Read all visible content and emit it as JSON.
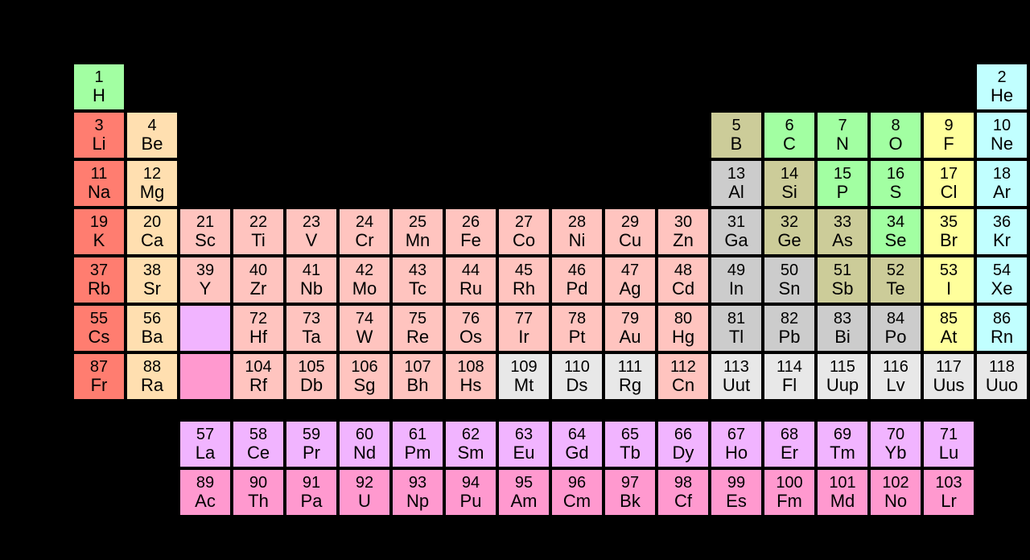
{
  "type": "periodic-table",
  "background_color": "#000000",
  "cell_border_color": "#000000",
  "cell": {
    "width": 66,
    "height": 60,
    "gap": 0,
    "fblock_row_gap": 24
  },
  "number_fontsize": 20,
  "symbol_fontsize": 22,
  "text_color": "#000000",
  "colors": {
    "alkali": "#ff7d70",
    "alkaline": "#ffdfb0",
    "transition": "#ffc4bf",
    "posttrans": "#cccccc",
    "metalloid": "#cccc99",
    "nonmetal": "#a2ffa2",
    "halogen": "#ffff9c",
    "noble": "#c1ffff",
    "lanth": "#f1b4ff",
    "act": "#ff99cf",
    "unknown": "#e8e8e8",
    "lanth_marker": "#f1b4ff",
    "act_marker": "#ff99cf"
  },
  "elements": [
    {
      "n": 1,
      "s": "H",
      "g": 1,
      "p": 1,
      "c": "nonmetal"
    },
    {
      "n": 2,
      "s": "He",
      "g": 18,
      "p": 1,
      "c": "noble"
    },
    {
      "n": 3,
      "s": "Li",
      "g": 1,
      "p": 2,
      "c": "alkali"
    },
    {
      "n": 4,
      "s": "Be",
      "g": 2,
      "p": 2,
      "c": "alkaline"
    },
    {
      "n": 5,
      "s": "B",
      "g": 13,
      "p": 2,
      "c": "metalloid"
    },
    {
      "n": 6,
      "s": "C",
      "g": 14,
      "p": 2,
      "c": "nonmetal"
    },
    {
      "n": 7,
      "s": "N",
      "g": 15,
      "p": 2,
      "c": "nonmetal"
    },
    {
      "n": 8,
      "s": "O",
      "g": 16,
      "p": 2,
      "c": "nonmetal"
    },
    {
      "n": 9,
      "s": "F",
      "g": 17,
      "p": 2,
      "c": "halogen"
    },
    {
      "n": 10,
      "s": "Ne",
      "g": 18,
      "p": 2,
      "c": "noble"
    },
    {
      "n": 11,
      "s": "Na",
      "g": 1,
      "p": 3,
      "c": "alkali"
    },
    {
      "n": 12,
      "s": "Mg",
      "g": 2,
      "p": 3,
      "c": "alkaline"
    },
    {
      "n": 13,
      "s": "Al",
      "g": 13,
      "p": 3,
      "c": "posttrans"
    },
    {
      "n": 14,
      "s": "Si",
      "g": 14,
      "p": 3,
      "c": "metalloid"
    },
    {
      "n": 15,
      "s": "P",
      "g": 15,
      "p": 3,
      "c": "nonmetal"
    },
    {
      "n": 16,
      "s": "S",
      "g": 16,
      "p": 3,
      "c": "nonmetal"
    },
    {
      "n": 17,
      "s": "Cl",
      "g": 17,
      "p": 3,
      "c": "halogen"
    },
    {
      "n": 18,
      "s": "Ar",
      "g": 18,
      "p": 3,
      "c": "noble"
    },
    {
      "n": 19,
      "s": "K",
      "g": 1,
      "p": 4,
      "c": "alkali"
    },
    {
      "n": 20,
      "s": "Ca",
      "g": 2,
      "p": 4,
      "c": "alkaline"
    },
    {
      "n": 21,
      "s": "Sc",
      "g": 3,
      "p": 4,
      "c": "transition"
    },
    {
      "n": 22,
      "s": "Ti",
      "g": 4,
      "p": 4,
      "c": "transition"
    },
    {
      "n": 23,
      "s": "V",
      "g": 5,
      "p": 4,
      "c": "transition"
    },
    {
      "n": 24,
      "s": "Cr",
      "g": 6,
      "p": 4,
      "c": "transition"
    },
    {
      "n": 25,
      "s": "Mn",
      "g": 7,
      "p": 4,
      "c": "transition"
    },
    {
      "n": 26,
      "s": "Fe",
      "g": 8,
      "p": 4,
      "c": "transition"
    },
    {
      "n": 27,
      "s": "Co",
      "g": 9,
      "p": 4,
      "c": "transition"
    },
    {
      "n": 28,
      "s": "Ni",
      "g": 10,
      "p": 4,
      "c": "transition"
    },
    {
      "n": 29,
      "s": "Cu",
      "g": 11,
      "p": 4,
      "c": "transition"
    },
    {
      "n": 30,
      "s": "Zn",
      "g": 12,
      "p": 4,
      "c": "transition"
    },
    {
      "n": 31,
      "s": "Ga",
      "g": 13,
      "p": 4,
      "c": "posttrans"
    },
    {
      "n": 32,
      "s": "Ge",
      "g": 14,
      "p": 4,
      "c": "metalloid"
    },
    {
      "n": 33,
      "s": "As",
      "g": 15,
      "p": 4,
      "c": "metalloid"
    },
    {
      "n": 34,
      "s": "Se",
      "g": 16,
      "p": 4,
      "c": "nonmetal"
    },
    {
      "n": 35,
      "s": "Br",
      "g": 17,
      "p": 4,
      "c": "halogen"
    },
    {
      "n": 36,
      "s": "Kr",
      "g": 18,
      "p": 4,
      "c": "noble"
    },
    {
      "n": 37,
      "s": "Rb",
      "g": 1,
      "p": 5,
      "c": "alkali"
    },
    {
      "n": 38,
      "s": "Sr",
      "g": 2,
      "p": 5,
      "c": "alkaline"
    },
    {
      "n": 39,
      "s": "Y",
      "g": 3,
      "p": 5,
      "c": "transition"
    },
    {
      "n": 40,
      "s": "Zr",
      "g": 4,
      "p": 5,
      "c": "transition"
    },
    {
      "n": 41,
      "s": "Nb",
      "g": 5,
      "p": 5,
      "c": "transition"
    },
    {
      "n": 42,
      "s": "Mo",
      "g": 6,
      "p": 5,
      "c": "transition"
    },
    {
      "n": 43,
      "s": "Tc",
      "g": 7,
      "p": 5,
      "c": "transition"
    },
    {
      "n": 44,
      "s": "Ru",
      "g": 8,
      "p": 5,
      "c": "transition"
    },
    {
      "n": 45,
      "s": "Rh",
      "g": 9,
      "p": 5,
      "c": "transition"
    },
    {
      "n": 46,
      "s": "Pd",
      "g": 10,
      "p": 5,
      "c": "transition"
    },
    {
      "n": 47,
      "s": "Ag",
      "g": 11,
      "p": 5,
      "c": "transition"
    },
    {
      "n": 48,
      "s": "Cd",
      "g": 12,
      "p": 5,
      "c": "transition"
    },
    {
      "n": 49,
      "s": "In",
      "g": 13,
      "p": 5,
      "c": "posttrans"
    },
    {
      "n": 50,
      "s": "Sn",
      "g": 14,
      "p": 5,
      "c": "posttrans"
    },
    {
      "n": 51,
      "s": "Sb",
      "g": 15,
      "p": 5,
      "c": "metalloid"
    },
    {
      "n": 52,
      "s": "Te",
      "g": 16,
      "p": 5,
      "c": "metalloid"
    },
    {
      "n": 53,
      "s": "I",
      "g": 17,
      "p": 5,
      "c": "halogen"
    },
    {
      "n": 54,
      "s": "Xe",
      "g": 18,
      "p": 5,
      "c": "noble"
    },
    {
      "n": 55,
      "s": "Cs",
      "g": 1,
      "p": 6,
      "c": "alkali"
    },
    {
      "n": 56,
      "s": "Ba",
      "g": 2,
      "p": 6,
      "c": "alkaline"
    },
    {
      "n": 0,
      "s": "",
      "g": 3,
      "p": 6,
      "c": "lanth_marker",
      "marker": true
    },
    {
      "n": 72,
      "s": "Hf",
      "g": 4,
      "p": 6,
      "c": "transition"
    },
    {
      "n": 73,
      "s": "Ta",
      "g": 5,
      "p": 6,
      "c": "transition"
    },
    {
      "n": 74,
      "s": "W",
      "g": 6,
      "p": 6,
      "c": "transition"
    },
    {
      "n": 75,
      "s": "Re",
      "g": 7,
      "p": 6,
      "c": "transition"
    },
    {
      "n": 76,
      "s": "Os",
      "g": 8,
      "p": 6,
      "c": "transition"
    },
    {
      "n": 77,
      "s": "Ir",
      "g": 9,
      "p": 6,
      "c": "transition"
    },
    {
      "n": 78,
      "s": "Pt",
      "g": 10,
      "p": 6,
      "c": "transition"
    },
    {
      "n": 79,
      "s": "Au",
      "g": 11,
      "p": 6,
      "c": "transition"
    },
    {
      "n": 80,
      "s": "Hg",
      "g": 12,
      "p": 6,
      "c": "transition"
    },
    {
      "n": 81,
      "s": "Tl",
      "g": 13,
      "p": 6,
      "c": "posttrans"
    },
    {
      "n": 82,
      "s": "Pb",
      "g": 14,
      "p": 6,
      "c": "posttrans"
    },
    {
      "n": 83,
      "s": "Bi",
      "g": 15,
      "p": 6,
      "c": "posttrans"
    },
    {
      "n": 84,
      "s": "Po",
      "g": 16,
      "p": 6,
      "c": "posttrans"
    },
    {
      "n": 85,
      "s": "At",
      "g": 17,
      "p": 6,
      "c": "halogen"
    },
    {
      "n": 86,
      "s": "Rn",
      "g": 18,
      "p": 6,
      "c": "noble"
    },
    {
      "n": 87,
      "s": "Fr",
      "g": 1,
      "p": 7,
      "c": "alkali"
    },
    {
      "n": 88,
      "s": "Ra",
      "g": 2,
      "p": 7,
      "c": "alkaline"
    },
    {
      "n": 0,
      "s": "",
      "g": 3,
      "p": 7,
      "c": "act_marker",
      "marker": true
    },
    {
      "n": 104,
      "s": "Rf",
      "g": 4,
      "p": 7,
      "c": "transition"
    },
    {
      "n": 105,
      "s": "Db",
      "g": 5,
      "p": 7,
      "c": "transition"
    },
    {
      "n": 106,
      "s": "Sg",
      "g": 6,
      "p": 7,
      "c": "transition"
    },
    {
      "n": 107,
      "s": "Bh",
      "g": 7,
      "p": 7,
      "c": "transition"
    },
    {
      "n": 108,
      "s": "Hs",
      "g": 8,
      "p": 7,
      "c": "transition"
    },
    {
      "n": 109,
      "s": "Mt",
      "g": 9,
      "p": 7,
      "c": "unknown"
    },
    {
      "n": 110,
      "s": "Ds",
      "g": 10,
      "p": 7,
      "c": "unknown"
    },
    {
      "n": 111,
      "s": "Rg",
      "g": 11,
      "p": 7,
      "c": "unknown"
    },
    {
      "n": 112,
      "s": "Cn",
      "g": 12,
      "p": 7,
      "c": "transition"
    },
    {
      "n": 113,
      "s": "Uut",
      "g": 13,
      "p": 7,
      "c": "unknown"
    },
    {
      "n": 114,
      "s": "Fl",
      "g": 14,
      "p": 7,
      "c": "unknown"
    },
    {
      "n": 115,
      "s": "Uup",
      "g": 15,
      "p": 7,
      "c": "unknown"
    },
    {
      "n": 116,
      "s": "Lv",
      "g": 16,
      "p": 7,
      "c": "unknown"
    },
    {
      "n": 117,
      "s": "Uus",
      "g": 17,
      "p": 7,
      "c": "unknown"
    },
    {
      "n": 118,
      "s": "Uuo",
      "g": 18,
      "p": 7,
      "c": "unknown"
    }
  ],
  "lanthanides": [
    {
      "n": 57,
      "s": "La",
      "c": "lanth"
    },
    {
      "n": 58,
      "s": "Ce",
      "c": "lanth"
    },
    {
      "n": 59,
      "s": "Pr",
      "c": "lanth"
    },
    {
      "n": 60,
      "s": "Nd",
      "c": "lanth"
    },
    {
      "n": 61,
      "s": "Pm",
      "c": "lanth"
    },
    {
      "n": 62,
      "s": "Sm",
      "c": "lanth"
    },
    {
      "n": 63,
      "s": "Eu",
      "c": "lanth"
    },
    {
      "n": 64,
      "s": "Gd",
      "c": "lanth"
    },
    {
      "n": 65,
      "s": "Tb",
      "c": "lanth"
    },
    {
      "n": 66,
      "s": "Dy",
      "c": "lanth"
    },
    {
      "n": 67,
      "s": "Ho",
      "c": "lanth"
    },
    {
      "n": 68,
      "s": "Er",
      "c": "lanth"
    },
    {
      "n": 69,
      "s": "Tm",
      "c": "lanth"
    },
    {
      "n": 70,
      "s": "Yb",
      "c": "lanth"
    },
    {
      "n": 71,
      "s": "Lu",
      "c": "lanth"
    }
  ],
  "actinides": [
    {
      "n": 89,
      "s": "Ac",
      "c": "act"
    },
    {
      "n": 90,
      "s": "Th",
      "c": "act"
    },
    {
      "n": 91,
      "s": "Pa",
      "c": "act"
    },
    {
      "n": 92,
      "s": "U",
      "c": "act"
    },
    {
      "n": 93,
      "s": "Np",
      "c": "act"
    },
    {
      "n": 94,
      "s": "Pu",
      "c": "act"
    },
    {
      "n": 95,
      "s": "Am",
      "c": "act"
    },
    {
      "n": 96,
      "s": "Cm",
      "c": "act"
    },
    {
      "n": 97,
      "s": "Bk",
      "c": "act"
    },
    {
      "n": 98,
      "s": "Cf",
      "c": "act"
    },
    {
      "n": 99,
      "s": "Es",
      "c": "act"
    },
    {
      "n": 100,
      "s": "Fm",
      "c": "act"
    },
    {
      "n": 101,
      "s": "Md",
      "c": "act"
    },
    {
      "n": 102,
      "s": "No",
      "c": "act"
    },
    {
      "n": 103,
      "s": "Lr",
      "c": "act"
    }
  ]
}
